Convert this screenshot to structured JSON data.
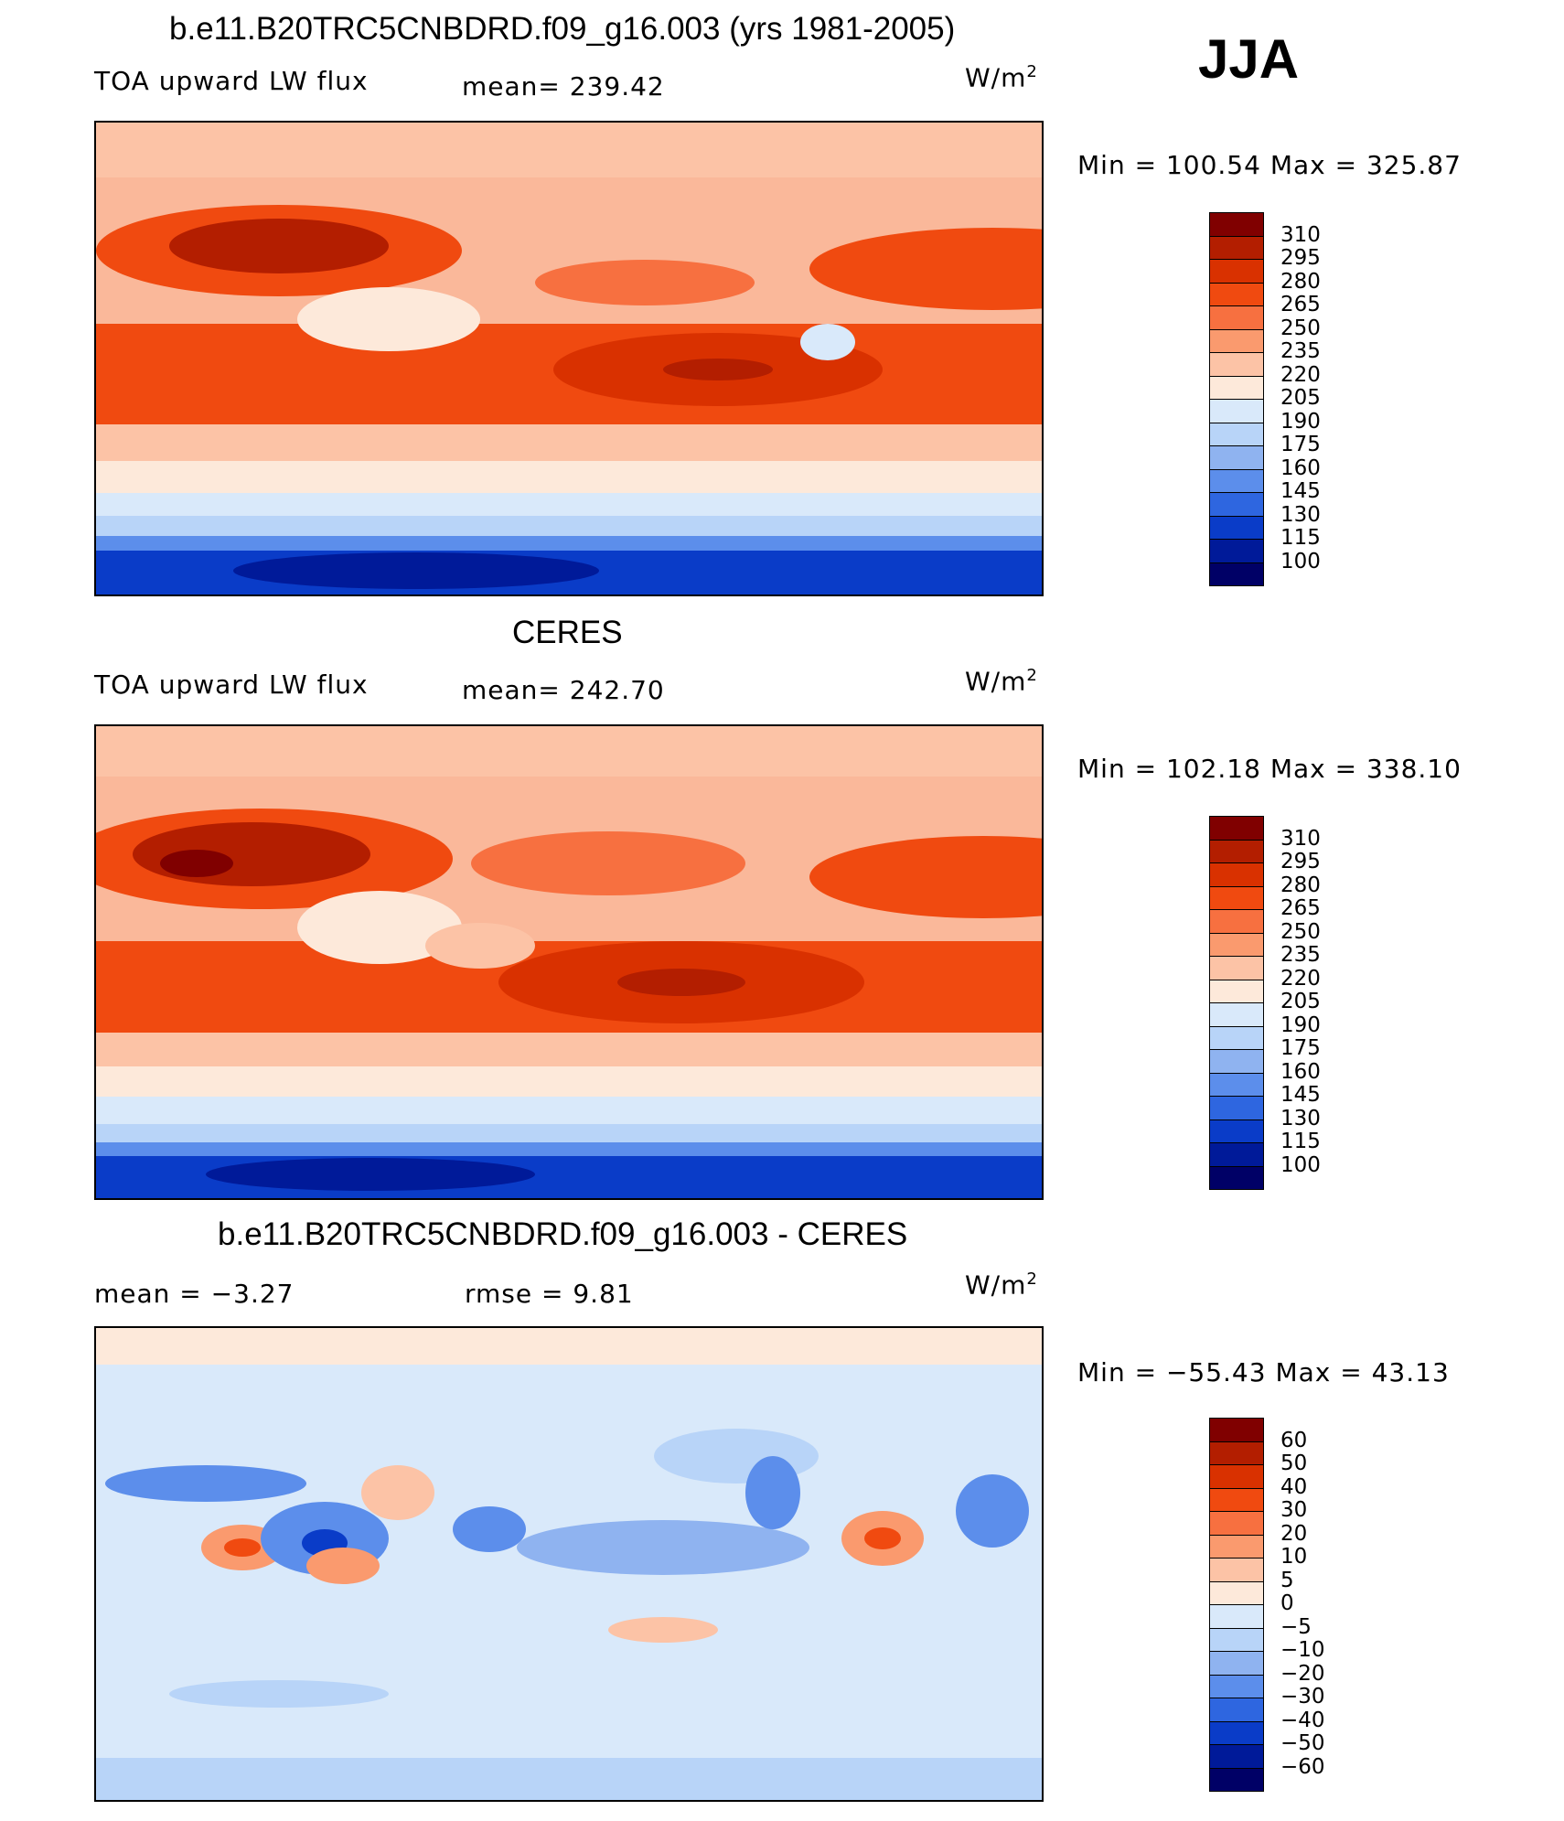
{
  "season": "JJA",
  "panels": [
    {
      "title": "b.e11.B20TRC5CNBDRD.f09_g16.003 (yrs 1981-2005)",
      "left_label": "TOA upward LW flux",
      "mean_label": "mean=  239.42",
      "rmse_label": "",
      "unit": "W/m",
      "unit_sup": "2",
      "minmax": "Min  =  100.54  Max  =  325.87",
      "colorbar": {
        "labels": [
          "310",
          "295",
          "280",
          "265",
          "250",
          "235",
          "220",
          "205",
          "190",
          "175",
          "160",
          "145",
          "130",
          "115",
          "100"
        ],
        "colors": [
          "#800000",
          "#b31e00",
          "#d93100",
          "#f04a10",
          "#f77040",
          "#fa9a6e",
          "#fcc3a6",
          "#fde9da",
          "#d9e9fa",
          "#b8d4f8",
          "#8fb3f0",
          "#5c8eeb",
          "#2e66e0",
          "#0a3cc8",
          "#001a99",
          "#000066"
        ]
      }
    },
    {
      "title": "CERES",
      "left_label": "TOA upward LW flux",
      "mean_label": "mean=  242.70",
      "rmse_label": "",
      "unit": "W/m",
      "unit_sup": "2",
      "minmax": "Min  =  102.18  Max  =  338.10",
      "colorbar": {
        "labels": [
          "310",
          "295",
          "280",
          "265",
          "250",
          "235",
          "220",
          "205",
          "190",
          "175",
          "160",
          "145",
          "130",
          "115",
          "100"
        ],
        "colors": [
          "#800000",
          "#b31e00",
          "#d93100",
          "#f04a10",
          "#f77040",
          "#fa9a6e",
          "#fcc3a6",
          "#fde9da",
          "#d9e9fa",
          "#b8d4f8",
          "#8fb3f0",
          "#5c8eeb",
          "#2e66e0",
          "#0a3cc8",
          "#001a99",
          "#000066"
        ]
      }
    },
    {
      "title": "b.e11.B20TRC5CNBDRD.f09_g16.003 - CERES",
      "left_label": "mean =    −3.27",
      "mean_label": "",
      "rmse_label": "rmse =     9.81",
      "unit": "W/m",
      "unit_sup": "2",
      "minmax": "Min  =  −55.43  Max  =    43.13",
      "colorbar": {
        "labels": [
          "60",
          "50",
          "40",
          "30",
          "20",
          "10",
          "5",
          "0",
          "−5",
          "−10",
          "−20",
          "−30",
          "−40",
          "−50",
          "−60"
        ],
        "colors": [
          "#800000",
          "#b31e00",
          "#d93100",
          "#f04a10",
          "#f77040",
          "#fa9a6e",
          "#fcc3a6",
          "#fde9da",
          "#d9e9fa",
          "#b8d4f8",
          "#8fb3f0",
          "#5c8eeb",
          "#2e66e0",
          "#0a3cc8",
          "#001a99",
          "#000066"
        ]
      }
    }
  ],
  "chart_data": [
    {
      "type": "heatmap",
      "title": "b.e11.B20TRC5CNBDRD.f09_g16.003 (yrs 1981-2005)",
      "variable": "TOA upward LW flux",
      "units": "W/m2",
      "mean": 239.42,
      "min": 100.54,
      "max": 325.87,
      "contour_levels": [
        100,
        115,
        130,
        145,
        160,
        175,
        190,
        205,
        220,
        235,
        250,
        265,
        280,
        295,
        310
      ],
      "legend": "right"
    },
    {
      "type": "heatmap",
      "title": "CERES",
      "variable": "TOA upward LW flux",
      "units": "W/m2",
      "mean": 242.7,
      "min": 102.18,
      "max": 338.1,
      "contour_levels": [
        100,
        115,
        130,
        145,
        160,
        175,
        190,
        205,
        220,
        235,
        250,
        265,
        280,
        295,
        310
      ],
      "legend": "right"
    },
    {
      "type": "heatmap",
      "title": "b.e11.B20TRC5CNBDRD.f09_g16.003 - CERES",
      "units": "W/m2",
      "mean": -3.27,
      "rmse": 9.81,
      "min": -55.43,
      "max": 43.13,
      "contour_levels": [
        -60,
        -50,
        -40,
        -30,
        -20,
        -10,
        -5,
        0,
        5,
        10,
        20,
        30,
        40,
        50,
        60
      ],
      "legend": "right"
    }
  ]
}
